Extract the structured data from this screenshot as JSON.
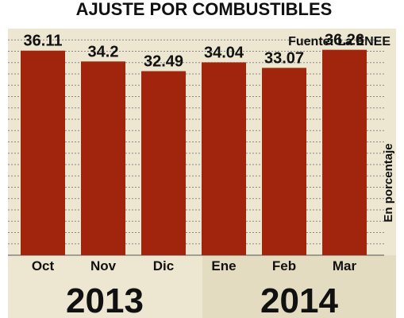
{
  "chart_data": {
    "type": "bar",
    "title": "AJUSTE POR COMBUSTIBLES",
    "source": "Fuente: La ENEE",
    "ylabel": "En porcentaje",
    "categories": [
      "Oct",
      "Nov",
      "Dic",
      "Ene",
      "Feb",
      "Mar"
    ],
    "values": [
      36.11,
      34.2,
      32.49,
      34.04,
      33.07,
      36.26
    ],
    "value_labels": [
      "36.11",
      "34.2",
      "32.49",
      "34.04",
      "33.07",
      "36.26"
    ],
    "groups": [
      {
        "label": "2013",
        "categories": [
          "Oct",
          "Nov",
          "Dic"
        ]
      },
      {
        "label": "2014",
        "categories": [
          "Ene",
          "Feb",
          "Mar"
        ]
      }
    ],
    "ylim": [
      0,
      40
    ],
    "grid": true,
    "colors": {
      "bar": "#a0250c",
      "plot_background": "#ede7d2",
      "group_2014_background": "#e3dcc0",
      "gridline": "#8a8a8a"
    }
  }
}
